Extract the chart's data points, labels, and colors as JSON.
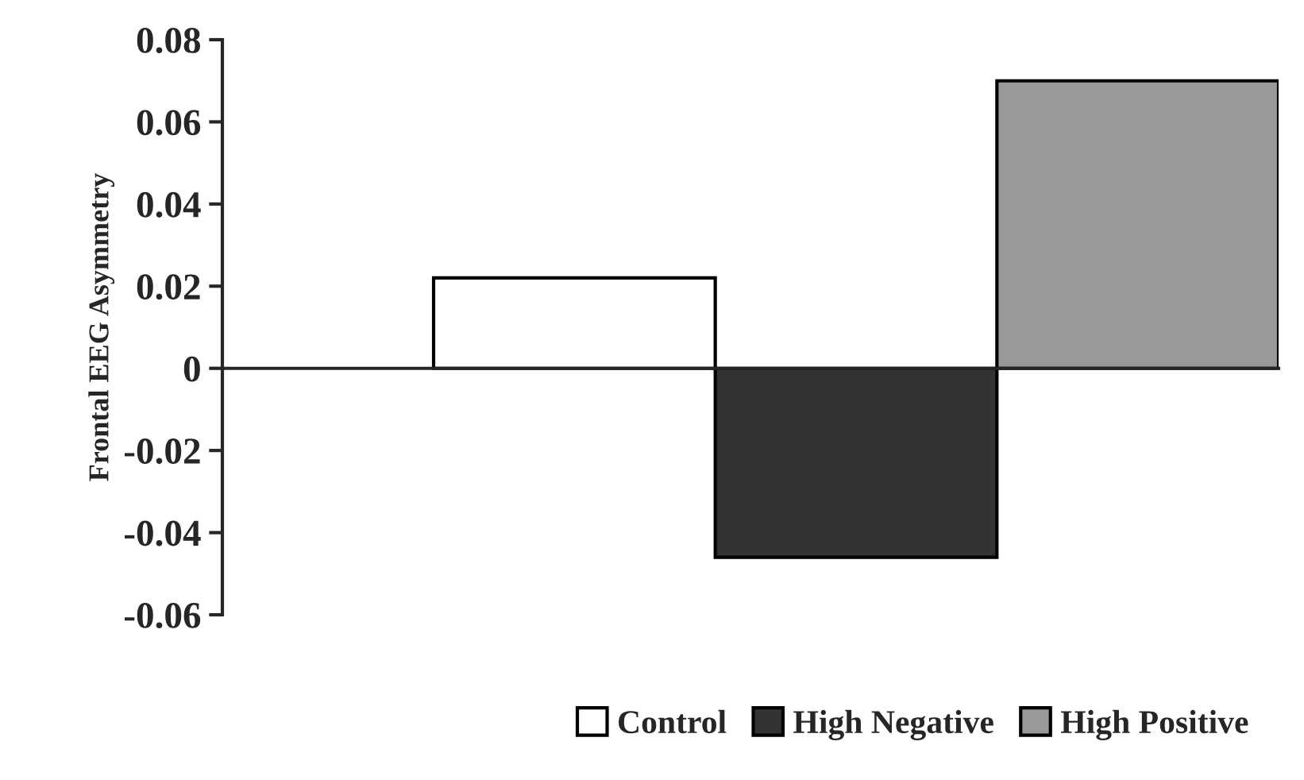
{
  "chart_data": {
    "type": "bar",
    "ylabel": "Frontal EEG Asymmetry",
    "categories": [
      null
    ],
    "series": [
      {
        "name": "Control",
        "color": "#ffffff",
        "values": [
          0.022
        ]
      },
      {
        "name": "High Negative",
        "color": "#333333",
        "values": [
          -0.046
        ]
      },
      {
        "name": "High Positive",
        "color": "#999999",
        "values": [
          0.07
        ]
      }
    ],
    "ylim": [
      -0.06,
      0.08
    ],
    "yticks": [
      -0.06,
      -0.04,
      -0.02,
      0,
      0.02,
      0.04,
      0.06,
      0.08
    ],
    "legend": "bottom right"
  }
}
